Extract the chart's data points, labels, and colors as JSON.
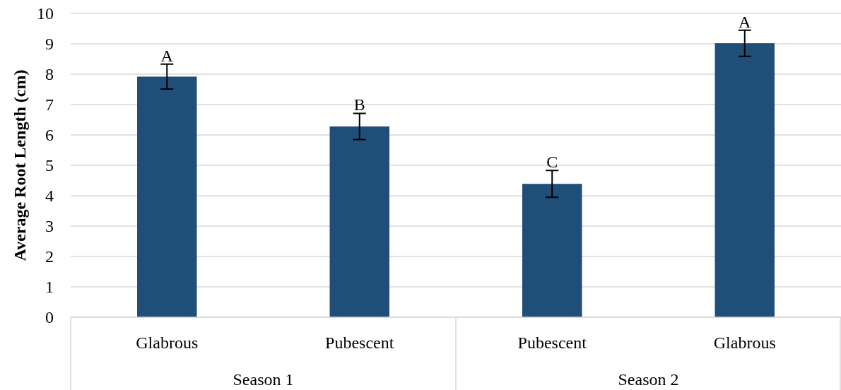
{
  "chart_data": {
    "type": "bar",
    "ylabel": "Average Root Length (cm)",
    "categories": [
      "Glabrous",
      "Pubescent",
      "Pubescent",
      "Glabrous"
    ],
    "values": [
      7.92,
      6.28,
      4.39,
      9.02
    ],
    "errors": [
      0.41,
      0.43,
      0.44,
      0.43
    ],
    "color": "#1f4e79",
    "ylim": [
      0,
      10
    ],
    "yticks": [
      0,
      1,
      2,
      3,
      4,
      5,
      6,
      7,
      8,
      9,
      10
    ],
    "grid": "y",
    "annotations": [
      "A",
      "B",
      "C",
      "A",
      "Season 1",
      "Season 2"
    ]
  }
}
